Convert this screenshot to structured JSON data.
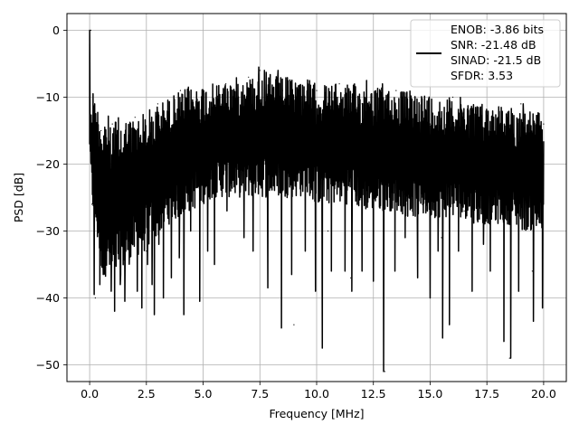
{
  "chart_data": {
    "type": "line",
    "xlabel": "Frequency [MHz]",
    "ylabel": "PSD [dB]",
    "xlim": [
      -1.0,
      21.0
    ],
    "ylim": [
      -52.5,
      2.5
    ],
    "grid": true,
    "xticks": [
      0.0,
      2.5,
      5.0,
      7.5,
      10.0,
      12.5,
      15.0,
      17.5,
      20.0
    ],
    "xtick_labels": [
      "0.0",
      "2.5",
      "5.0",
      "7.5",
      "10.0",
      "12.5",
      "15.0",
      "17.5",
      "20.0"
    ],
    "yticks": [
      0,
      -10,
      -20,
      -30,
      -40,
      -50
    ],
    "ytick_labels": [
      "0",
      "−10",
      "−20",
      "−30",
      "−40",
      "−50"
    ],
    "legend": {
      "position": "top-right",
      "entries": [
        "ENOB: -3.86 bits",
        "SNR: -21.48 dB",
        "SINAD: -21.5 dB",
        "SFDR: 3.53"
      ]
    },
    "series": [
      {
        "color": "#000000",
        "x": [
          0.0,
          0.05,
          0.1,
          0.15,
          0.2,
          0.25,
          0.5,
          1.0,
          1.5,
          2.0,
          2.5,
          3.0,
          3.5,
          4.0,
          4.5,
          5.0,
          5.5,
          6.0,
          6.5,
          7.0,
          7.5,
          8.0,
          8.5,
          9.0,
          9.5,
          10.0,
          10.5,
          11.0,
          11.5,
          12.0,
          12.5,
          13.0,
          13.5,
          14.0,
          14.5,
          15.0,
          15.5,
          16.0,
          16.5,
          17.0,
          17.5,
          18.0,
          18.5,
          19.0,
          19.5,
          20.0
        ],
        "y": [
          -17,
          0,
          -26,
          -9.5,
          -32,
          -40,
          -15,
          -14,
          -23,
          -13,
          -33,
          -11,
          -20,
          -9,
          -16,
          -10,
          -24,
          -8,
          -18,
          -7,
          -6,
          -22,
          -9,
          -44,
          -15,
          -9,
          -30,
          -8,
          -37,
          -11,
          -21,
          -51,
          -9,
          -26,
          -11,
          -14,
          -31,
          -10,
          -27,
          -12,
          -18,
          -13,
          -49,
          -11,
          -36,
          -14
        ],
        "envelope": {
          "x": [
            0.0,
            0.1,
            0.5,
            1.0,
            1.5,
            2.0,
            2.5,
            3.0,
            3.5,
            4.0,
            4.5,
            5.0,
            5.5,
            6.0,
            6.5,
            7.0,
            7.5,
            8.0,
            8.5,
            9.0,
            9.5,
            10.0,
            10.5,
            11.0,
            11.5,
            12.0,
            12.5,
            13.0,
            13.5,
            14.0,
            14.5,
            15.0,
            15.5,
            16.0,
            16.5,
            17.0,
            17.5,
            18.0,
            18.5,
            19.0,
            19.5,
            20.0
          ],
          "upper": [
            -17,
            -9.5,
            -12,
            -13,
            -13,
            -13,
            -12,
            -11,
            -10,
            -9,
            -8.5,
            -8,
            -8,
            -7.5,
            -7,
            -7,
            -6,
            -6.5,
            -7,
            -7,
            -7,
            -8,
            -8,
            -8,
            -8,
            -8,
            -8.5,
            -8.5,
            -9,
            -9,
            -9,
            -9.5,
            -10,
            -10,
            -10,
            -10.5,
            -11,
            -11,
            -11.5,
            -11.5,
            -12,
            -12.5
          ],
          "lower": [
            -17,
            -26,
            -36,
            -38,
            -36,
            -34,
            -33,
            -31,
            -29,
            -28,
            -27,
            -26,
            -25,
            -25,
            -25,
            -25,
            -25,
            -25,
            -25,
            -25,
            -25,
            -26,
            -26,
            -26,
            -26,
            -27,
            -27,
            -27,
            -27,
            -28,
            -28,
            -28,
            -28,
            -28,
            -28,
            -29,
            -29,
            -29,
            -29,
            -30,
            -30,
            -31
          ]
        },
        "dips": [
          {
            "x": 0.2,
            "y": -39.5
          },
          {
            "x": 0.45,
            "y": -38
          },
          {
            "x": 0.6,
            "y": -36.5
          },
          {
            "x": 0.95,
            "y": -39
          },
          {
            "x": 1.1,
            "y": -42
          },
          {
            "x": 1.35,
            "y": -38
          },
          {
            "x": 1.55,
            "y": -40.5
          },
          {
            "x": 1.75,
            "y": -34
          },
          {
            "x": 2.1,
            "y": -39
          },
          {
            "x": 2.3,
            "y": -41.5
          },
          {
            "x": 2.55,
            "y": -35
          },
          {
            "x": 2.75,
            "y": -38
          },
          {
            "x": 2.85,
            "y": -42.5
          },
          {
            "x": 3.05,
            "y": -32
          },
          {
            "x": 3.25,
            "y": -40
          },
          {
            "x": 3.6,
            "y": -37
          },
          {
            "x": 3.95,
            "y": -34
          },
          {
            "x": 4.15,
            "y": -42.5
          },
          {
            "x": 4.45,
            "y": -30
          },
          {
            "x": 4.85,
            "y": -40.5
          },
          {
            "x": 5.2,
            "y": -33
          },
          {
            "x": 5.5,
            "y": -35
          },
          {
            "x": 6.05,
            "y": -27
          },
          {
            "x": 6.8,
            "y": -31
          },
          {
            "x": 7.2,
            "y": -33
          },
          {
            "x": 7.85,
            "y": -38.5
          },
          {
            "x": 8.45,
            "y": -44.5
          },
          {
            "x": 8.9,
            "y": -36.5
          },
          {
            "x": 9.5,
            "y": -33
          },
          {
            "x": 9.95,
            "y": -39
          },
          {
            "x": 10.25,
            "y": -47.5
          },
          {
            "x": 10.65,
            "y": -36
          },
          {
            "x": 11.25,
            "y": -36
          },
          {
            "x": 11.55,
            "y": -39
          },
          {
            "x": 12.0,
            "y": -36
          },
          {
            "x": 12.5,
            "y": -37.5
          },
          {
            "x": 12.95,
            "y": -51
          },
          {
            "x": 13.45,
            "y": -36
          },
          {
            "x": 13.9,
            "y": -31
          },
          {
            "x": 14.45,
            "y": -37
          },
          {
            "x": 15.0,
            "y": -40
          },
          {
            "x": 15.35,
            "y": -33
          },
          {
            "x": 15.55,
            "y": -46
          },
          {
            "x": 15.85,
            "y": -44
          },
          {
            "x": 16.25,
            "y": -33
          },
          {
            "x": 16.85,
            "y": -39
          },
          {
            "x": 17.35,
            "y": -32
          },
          {
            "x": 17.65,
            "y": -36
          },
          {
            "x": 18.25,
            "y": -46.5
          },
          {
            "x": 18.55,
            "y": -49
          },
          {
            "x": 18.9,
            "y": -39
          },
          {
            "x": 19.55,
            "y": -43.5
          },
          {
            "x": 19.95,
            "y": -41.5
          }
        ],
        "peaks": [
          {
            "x": 0.0,
            "y": 0.0
          },
          {
            "x": 0.15,
            "y": -9.5
          },
          {
            "x": 4.35,
            "y": -8.5
          },
          {
            "x": 7.45,
            "y": -5.5
          },
          {
            "x": 7.7,
            "y": -6
          },
          {
            "x": 8.3,
            "y": -6
          },
          {
            "x": 12.2,
            "y": -7.5
          },
          {
            "x": 12.9,
            "y": -8
          },
          {
            "x": 19.1,
            "y": -11
          }
        ]
      }
    ]
  }
}
